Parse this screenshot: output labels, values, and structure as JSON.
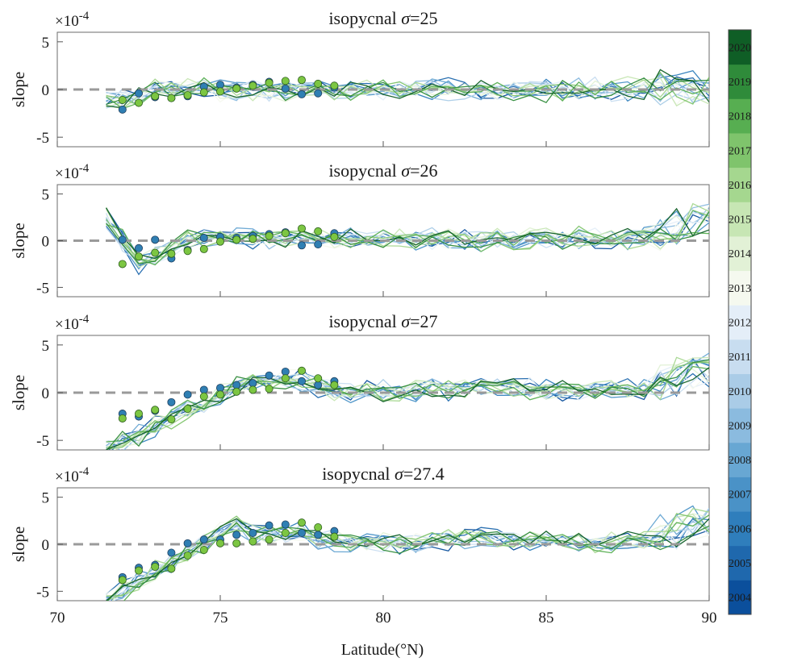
{
  "chart_data": {
    "type": "line",
    "colorbar": {
      "labels": [
        "2004",
        "2005",
        "2006",
        "2007",
        "2008",
        "2009",
        "2010",
        "2011",
        "2012",
        "2013",
        "2014",
        "2015",
        "2016",
        "2017",
        "2018",
        "2019",
        "2020"
      ],
      "colors": [
        "#0b4f9c",
        "#1f68ad",
        "#2f7ebc",
        "#4a92c7",
        "#68a7d3",
        "#8bbbdf",
        "#aacce7",
        "#c8ddf0",
        "#e4eef8",
        "#f5f9ef",
        "#e2f1d6",
        "#c7e6b4",
        "#a5d78f",
        "#7fc46c",
        "#57ae51",
        "#2f8b3a",
        "#0f5e26"
      ],
      "min": 2004,
      "max": 2021
    },
    "shared": {
      "xlabel": "Latitude(°N)",
      "ylabel": "slope",
      "xlim": [
        70,
        90
      ],
      "ylim": [
        -6,
        6
      ],
      "xticks": [
        "70",
        "75",
        "80",
        "85",
        "90"
      ],
      "yticks": [
        "5",
        "0",
        "-5"
      ],
      "exponent_base": "×10",
      "exponent_power": "-4"
    },
    "panels": [
      {
        "title_prefix": "isopycnal ",
        "title_sym": "σ",
        "title_value": "=25",
        "scatter_blue": {
          "x": [
            72,
            72.5,
            73,
            73.5,
            74,
            74.5,
            75,
            75.5,
            76,
            76.5,
            77,
            77.5,
            78,
            78.5
          ],
          "y": [
            -2.1,
            -0.4,
            -0.8,
            -0.9,
            -0.7,
            0.3,
            0.5,
            0.2,
            0.5,
            0.8,
            0.1,
            -0.5,
            -0.4,
            0.2
          ]
        },
        "scatter_green": {
          "x": [
            72,
            72.5,
            73,
            73.5,
            74,
            74.5,
            75,
            75.5,
            76,
            76.5,
            77,
            77.5,
            78,
            78.5
          ],
          "y": [
            -1.1,
            -1.4,
            -0.7,
            -0.9,
            -0.6,
            -0.3,
            -0.2,
            0.1,
            0.4,
            0.7,
            0.9,
            1.0,
            0.6,
            0.4
          ]
        }
      },
      {
        "title_prefix": "isopycnal ",
        "title_sym": "σ",
        "title_value": "=26",
        "scatter_blue": {
          "x": [
            72,
            72.5,
            73,
            73.5,
            74,
            74.5,
            75,
            75.5,
            76,
            76.5,
            77,
            77.5,
            78,
            78.5
          ],
          "y": [
            0.1,
            -0.8,
            0.1,
            -1.9,
            -1.0,
            0.3,
            0.4,
            0.3,
            0.5,
            0.7,
            0.9,
            -0.5,
            -0.4,
            0.8
          ]
        },
        "scatter_green": {
          "x": [
            72,
            72.5,
            73,
            73.5,
            74,
            74.5,
            75,
            75.5,
            76,
            76.5,
            77,
            77.5,
            78,
            78.5
          ],
          "y": [
            -2.5,
            -1.7,
            -1.3,
            -1.4,
            -1.1,
            -0.9,
            -0.1,
            0.1,
            0.2,
            0.5,
            0.8,
            1.3,
            1.0,
            0.4
          ]
        }
      },
      {
        "title_prefix": "isopycnal ",
        "title_sym": "σ",
        "title_value": "=27",
        "scatter_blue": {
          "x": [
            72,
            72.5,
            73,
            73.5,
            74,
            74.5,
            75,
            75.5,
            76,
            76.5,
            77,
            77.5,
            78,
            78.5
          ],
          "y": [
            -2.2,
            -2.5,
            -1.9,
            -1.0,
            -0.2,
            0.3,
            0.5,
            0.8,
            1.0,
            1.8,
            2.2,
            1.2,
            0.8,
            1.2
          ]
        },
        "scatter_green": {
          "x": [
            72,
            72.5,
            73,
            73.5,
            74,
            74.5,
            75,
            75.5,
            76,
            76.5,
            77,
            77.5,
            78,
            78.5
          ],
          "y": [
            -2.7,
            -2.2,
            -1.8,
            -2.8,
            -1.7,
            -0.4,
            -0.2,
            0.1,
            0.3,
            0.4,
            1.5,
            2.3,
            1.5,
            0.8
          ]
        }
      },
      {
        "title_prefix": "isopycnal ",
        "title_sym": "σ",
        "title_value": "=27.4",
        "scatter_blue": {
          "x": [
            72,
            72.5,
            73,
            73.5,
            74,
            74.5,
            75,
            75.5,
            76,
            76.5,
            77,
            77.5,
            78,
            78.5
          ],
          "y": [
            -3.5,
            -2.5,
            -2.2,
            -0.9,
            0.1,
            0.5,
            0.5,
            1.0,
            1.2,
            2.0,
            2.1,
            1.2,
            1.0,
            1.4
          ]
        },
        "scatter_green": {
          "x": [
            72,
            72.5,
            73,
            73.5,
            74,
            74.5,
            75,
            75.5,
            76,
            76.5,
            77,
            77.5,
            78,
            78.5
          ],
          "y": [
            -3.8,
            -2.8,
            -2.4,
            -2.6,
            -1.2,
            -0.6,
            0.1,
            0.1,
            0.3,
            0.5,
            1.2,
            2.3,
            1.8,
            0.8
          ]
        }
      }
    ]
  }
}
